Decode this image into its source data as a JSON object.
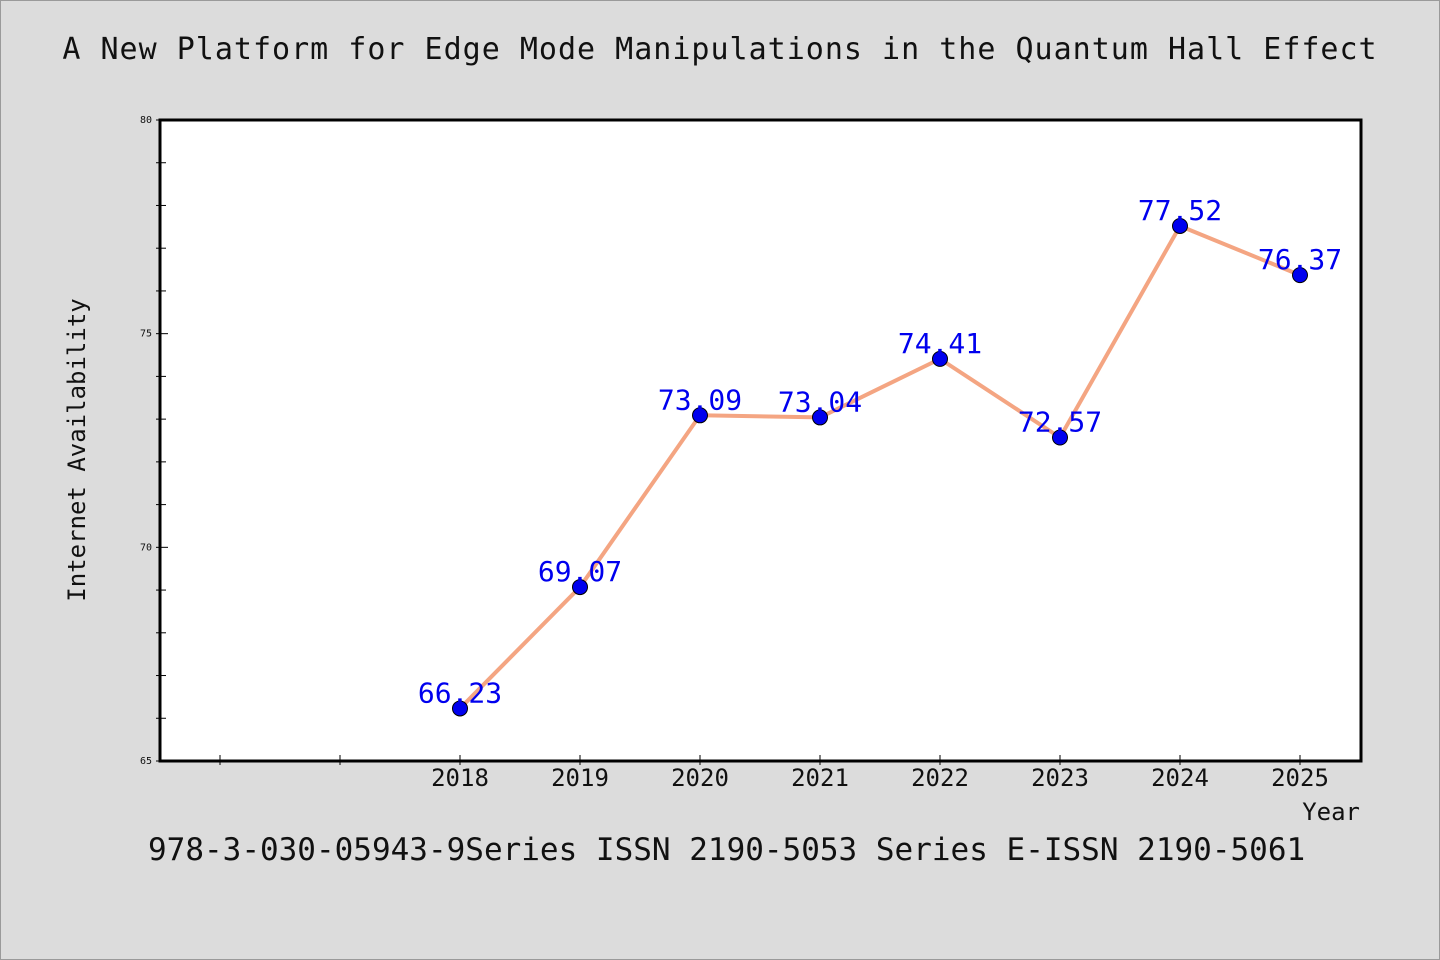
{
  "chart_data": {
    "type": "line",
    "title": "A New Platform for Edge Mode Manipulations in the Quantum Hall Effect",
    "caption": "978-3-030-05943-9Series ISSN 2190-5053 Series E-ISSN 2190-5061",
    "xlabel": "Year",
    "ylabel": "Internet Availability",
    "x": [
      "2018",
      "2019",
      "2020",
      "2021",
      "2022",
      "2023",
      "2024",
      "2025"
    ],
    "series": [
      {
        "values": [
          66.23,
          69.07,
          73.09,
          73.04,
          74.41,
          72.57,
          77.52,
          76.37
        ],
        "labels": [
          "66.23",
          "69.07",
          "73.09",
          "73.04",
          "74.41",
          "72.57",
          "77.52",
          "76.37"
        ]
      }
    ],
    "ylim": [
      65,
      80
    ],
    "yticks": [
      "65",
      "70",
      "75",
      "80"
    ],
    "grid": false,
    "legend": "none",
    "colors": {
      "line": "#f4a582",
      "marker": "#0000ee",
      "labels": "#0000ee",
      "background": "#dcdcdc",
      "plot_area": "#ffffff"
    }
  }
}
